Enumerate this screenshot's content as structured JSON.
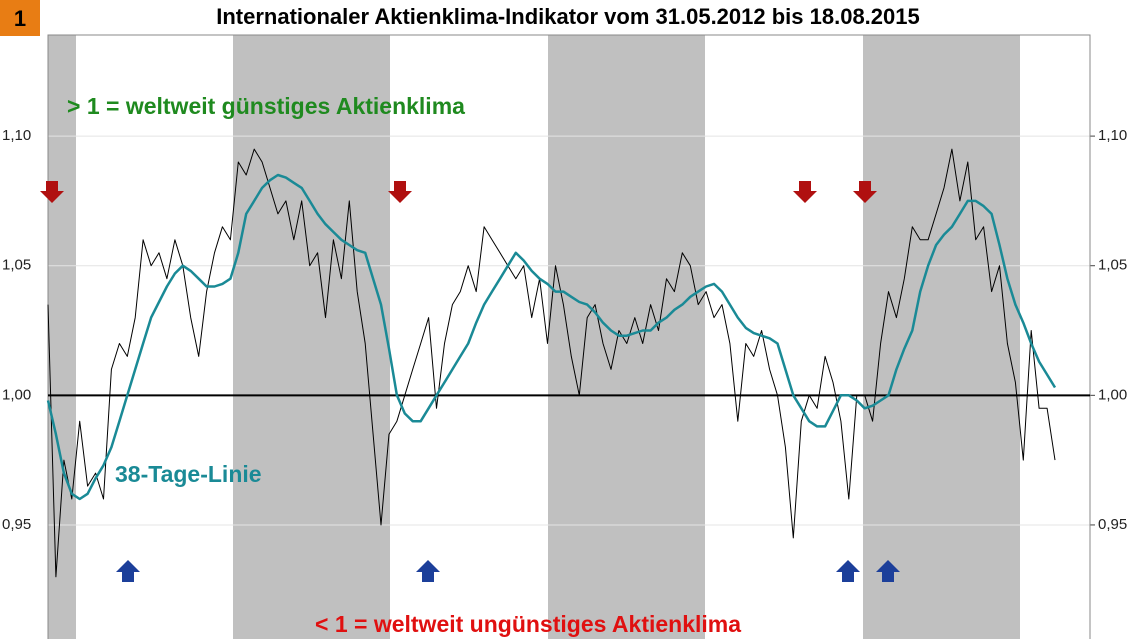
{
  "chart_data": {
    "type": "line",
    "badge": "1",
    "title": "Internationaler Aktienklima-Indikator vom 31.05.2012 bis 18.08.2015",
    "annotations": [
      "> 1 = weltweit günstiges Aktienklima",
      "38-Tage-Linie",
      "< 1 = weltweit ungünstiges Aktienklima"
    ],
    "categories": [
      null,
      null,
      null,
      null,
      null,
      null,
      null,
      null,
      null,
      null,
      null,
      null,
      null,
      null,
      null,
      null,
      null,
      null,
      null,
      null,
      null,
      null,
      null,
      null,
      null,
      null,
      null,
      null,
      null,
      null,
      null,
      null,
      null,
      null,
      null,
      null,
      null,
      null,
      null,
      null,
      null,
      null,
      null,
      null,
      null,
      null,
      null,
      null,
      null,
      null,
      null,
      null,
      null,
      null,
      null,
      null,
      null,
      null,
      null,
      null,
      null,
      null,
      null,
      null,
      null,
      null,
      null,
      null,
      null,
      null,
      null,
      null,
      null,
      null,
      null,
      null,
      null,
      null,
      null,
      null,
      null,
      null,
      null,
      null,
      null,
      null,
      null,
      null,
      null,
      null,
      null,
      null,
      null,
      null,
      null,
      null,
      null,
      null,
      null,
      null,
      null,
      null,
      null,
      null,
      null,
      null,
      null,
      null,
      null,
      null,
      null,
      null,
      null,
      null,
      null,
      null,
      null,
      null,
      null,
      null,
      null,
      null,
      null,
      null,
      null,
      null,
      null,
      null
    ],
    "series": [
      {
        "color": "#000000",
        "width": 1,
        "values": [
          1.035,
          0.93,
          0.975,
          0.96,
          0.99,
          0.965,
          0.97,
          0.96,
          1.01,
          1.02,
          1.015,
          1.03,
          1.06,
          1.05,
          1.055,
          1.045,
          1.06,
          1.05,
          1.03,
          1.015,
          1.04,
          1.055,
          1.065,
          1.06,
          1.09,
          1.085,
          1.095,
          1.09,
          1.08,
          1.07,
          1.075,
          1.06,
          1.075,
          1.05,
          1.055,
          1.03,
          1.06,
          1.045,
          1.075,
          1.04,
          1.02,
          0.985,
          0.95,
          0.985,
          0.99,
          1.0,
          1.01,
          1.02,
          1.03,
          0.995,
          1.02,
          1.035,
          1.04,
          1.05,
          1.04,
          1.065,
          1.06,
          1.055,
          1.05,
          1.045,
          1.05,
          1.03,
          1.045,
          1.02,
          1.05,
          1.035,
          1.015,
          1.0,
          1.03,
          1.035,
          1.02,
          1.01,
          1.025,
          1.02,
          1.03,
          1.02,
          1.035,
          1.025,
          1.045,
          1.04,
          1.055,
          1.05,
          1.035,
          1.04,
          1.03,
          1.035,
          1.02,
          0.99,
          1.02,
          1.015,
          1.025,
          1.01,
          1.0,
          0.98,
          0.945,
          0.99,
          1.0,
          0.995,
          1.015,
          1.005,
          0.99,
          0.96,
          1.0,
          1.0,
          0.99,
          1.02,
          1.04,
          1.03,
          1.045,
          1.065,
          1.06,
          1.06,
          1.07,
          1.08,
          1.095,
          1.075,
          1.09,
          1.06,
          1.065,
          1.04,
          1.05,
          1.02,
          1.005,
          0.975,
          1.025,
          0.995,
          0.995,
          0.975
        ]
      },
      {
        "color": "#1a8a96",
        "width": 2.5,
        "values": [
          0.998,
          0.985,
          0.97,
          0.962,
          0.96,
          0.962,
          0.968,
          0.973,
          0.98,
          0.99,
          1.0,
          1.01,
          1.02,
          1.03,
          1.036,
          1.042,
          1.047,
          1.05,
          1.048,
          1.045,
          1.042,
          1.042,
          1.043,
          1.045,
          1.055,
          1.07,
          1.075,
          1.08,
          1.083,
          1.085,
          1.084,
          1.082,
          1.08,
          1.075,
          1.07,
          1.066,
          1.063,
          1.06,
          1.058,
          1.056,
          1.055,
          1.045,
          1.035,
          1.018,
          1.0,
          0.993,
          0.99,
          0.99,
          0.995,
          1.0,
          1.005,
          1.01,
          1.015,
          1.02,
          1.028,
          1.035,
          1.04,
          1.045,
          1.05,
          1.055,
          1.052,
          1.048,
          1.045,
          1.043,
          1.04,
          1.04,
          1.038,
          1.036,
          1.035,
          1.032,
          1.028,
          1.025,
          1.023,
          1.023,
          1.024,
          1.025,
          1.025,
          1.028,
          1.03,
          1.033,
          1.035,
          1.038,
          1.04,
          1.042,
          1.043,
          1.04,
          1.035,
          1.03,
          1.026,
          1.024,
          1.023,
          1.022,
          1.02,
          1.01,
          1.0,
          0.995,
          0.99,
          0.988,
          0.988,
          0.994,
          1.0,
          1.0,
          0.998,
          0.995,
          0.996,
          0.998,
          1.0,
          1.01,
          1.018,
          1.025,
          1.04,
          1.05,
          1.058,
          1.062,
          1.065,
          1.07,
          1.075,
          1.075,
          1.073,
          1.07,
          1.058,
          1.045,
          1.035,
          1.028,
          1.02,
          1.013,
          1.008,
          1.003
        ]
      }
    ],
    "ylim": [
      0.906,
      1.139
    ],
    "yticks": [
      {
        "value": 0.95,
        "label": "0,95"
      },
      {
        "value": 1.0,
        "label": "1,00"
      },
      {
        "value": 1.05,
        "label": "1,05"
      },
      {
        "value": 1.1,
        "label": "1,10"
      }
    ],
    "baseline": 1.0,
    "grid": true
  }
}
